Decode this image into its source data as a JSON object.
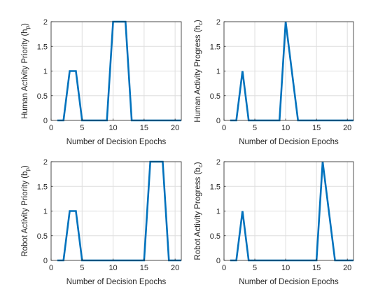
{
  "chart_data": [
    {
      "type": "line",
      "ylabel_main": "Human Activity Priority (h",
      "ylabel_sub": "p",
      "ylabel_close": ")",
      "xlabel": "Number of Decision Epochs",
      "xlim": [
        0,
        21
      ],
      "ylim": [
        0,
        2
      ],
      "xticks": [
        0,
        5,
        10,
        15,
        20
      ],
      "yticks": [
        0,
        0.5,
        1,
        1.5,
        2
      ],
      "ytick_labels": [
        "0",
        "0.5",
        "1",
        "1.5",
        "2"
      ],
      "grid": true,
      "series_color": "#0072bd",
      "x": [
        1,
        2,
        3,
        4,
        5,
        6,
        7,
        8,
        9,
        10,
        11,
        12,
        13,
        14,
        15,
        16,
        17,
        18,
        19,
        20,
        21
      ],
      "y": [
        0,
        0,
        1,
        1,
        0,
        0,
        0,
        0,
        0,
        2,
        2,
        2,
        0,
        0,
        0,
        0,
        0,
        0,
        0,
        0,
        0
      ]
    },
    {
      "type": "line",
      "ylabel_main": "Human Activity Progress (h",
      "ylabel_sub": "c",
      "ylabel_close": ")",
      "xlabel": "Number of Decision Epochs",
      "xlim": [
        0,
        21
      ],
      "ylim": [
        0,
        2
      ],
      "xticks": [
        0,
        5,
        10,
        15,
        20
      ],
      "yticks": [
        0,
        0.5,
        1,
        1.5,
        2
      ],
      "ytick_labels": [
        "0",
        "0.5",
        "1",
        "1.5",
        "2"
      ],
      "grid": true,
      "series_color": "#0072bd",
      "x": [
        1,
        2,
        3,
        4,
        5,
        6,
        7,
        8,
        9,
        10,
        11,
        12,
        13,
        14,
        15,
        16,
        17,
        18,
        19,
        20,
        21
      ],
      "y": [
        0,
        0,
        1,
        0,
        0,
        0,
        0,
        0,
        0,
        2,
        1,
        0,
        0,
        0,
        0,
        0,
        0,
        0,
        0,
        0,
        0
      ]
    },
    {
      "type": "line",
      "ylabel_main": "Robot Activity Priority (b",
      "ylabel_sub": "p",
      "ylabel_close": ")",
      "xlabel": "Number of Decision Epochs",
      "xlim": [
        0,
        21
      ],
      "ylim": [
        0,
        2
      ],
      "xticks": [
        0,
        5,
        10,
        15,
        20
      ],
      "yticks": [
        0,
        0.5,
        1,
        1.5,
        2
      ],
      "ytick_labels": [
        "0",
        "0.5",
        "1",
        "1.5",
        "2"
      ],
      "grid": true,
      "series_color": "#0072bd",
      "x": [
        1,
        2,
        3,
        4,
        5,
        6,
        7,
        8,
        9,
        10,
        11,
        12,
        13,
        14,
        15,
        16,
        17,
        18,
        19,
        20,
        21
      ],
      "y": [
        0,
        0,
        1,
        1,
        0,
        0,
        0,
        0,
        0,
        0,
        0,
        0,
        0,
        0,
        0,
        2,
        2,
        2,
        0,
        0,
        0
      ]
    },
    {
      "type": "line",
      "ylabel_main": "Robot Activity Progress (b",
      "ylabel_sub": "c",
      "ylabel_close": ")",
      "xlabel": "Number of Decision Epochs",
      "xlim": [
        0,
        21
      ],
      "ylim": [
        0,
        2
      ],
      "xticks": [
        0,
        5,
        10,
        15,
        20
      ],
      "yticks": [
        0,
        0.5,
        1,
        1.5,
        2
      ],
      "ytick_labels": [
        "0",
        "0.5",
        "1",
        "1.5",
        "2"
      ],
      "grid": true,
      "series_color": "#0072bd",
      "x": [
        1,
        2,
        3,
        4,
        5,
        6,
        7,
        8,
        9,
        10,
        11,
        12,
        13,
        14,
        15,
        16,
        17,
        18,
        19,
        20,
        21
      ],
      "y": [
        0,
        0,
        1,
        0,
        0,
        0,
        0,
        0,
        0,
        0,
        0,
        0,
        0,
        0,
        0,
        2,
        1,
        0,
        0,
        0,
        0
      ]
    }
  ]
}
